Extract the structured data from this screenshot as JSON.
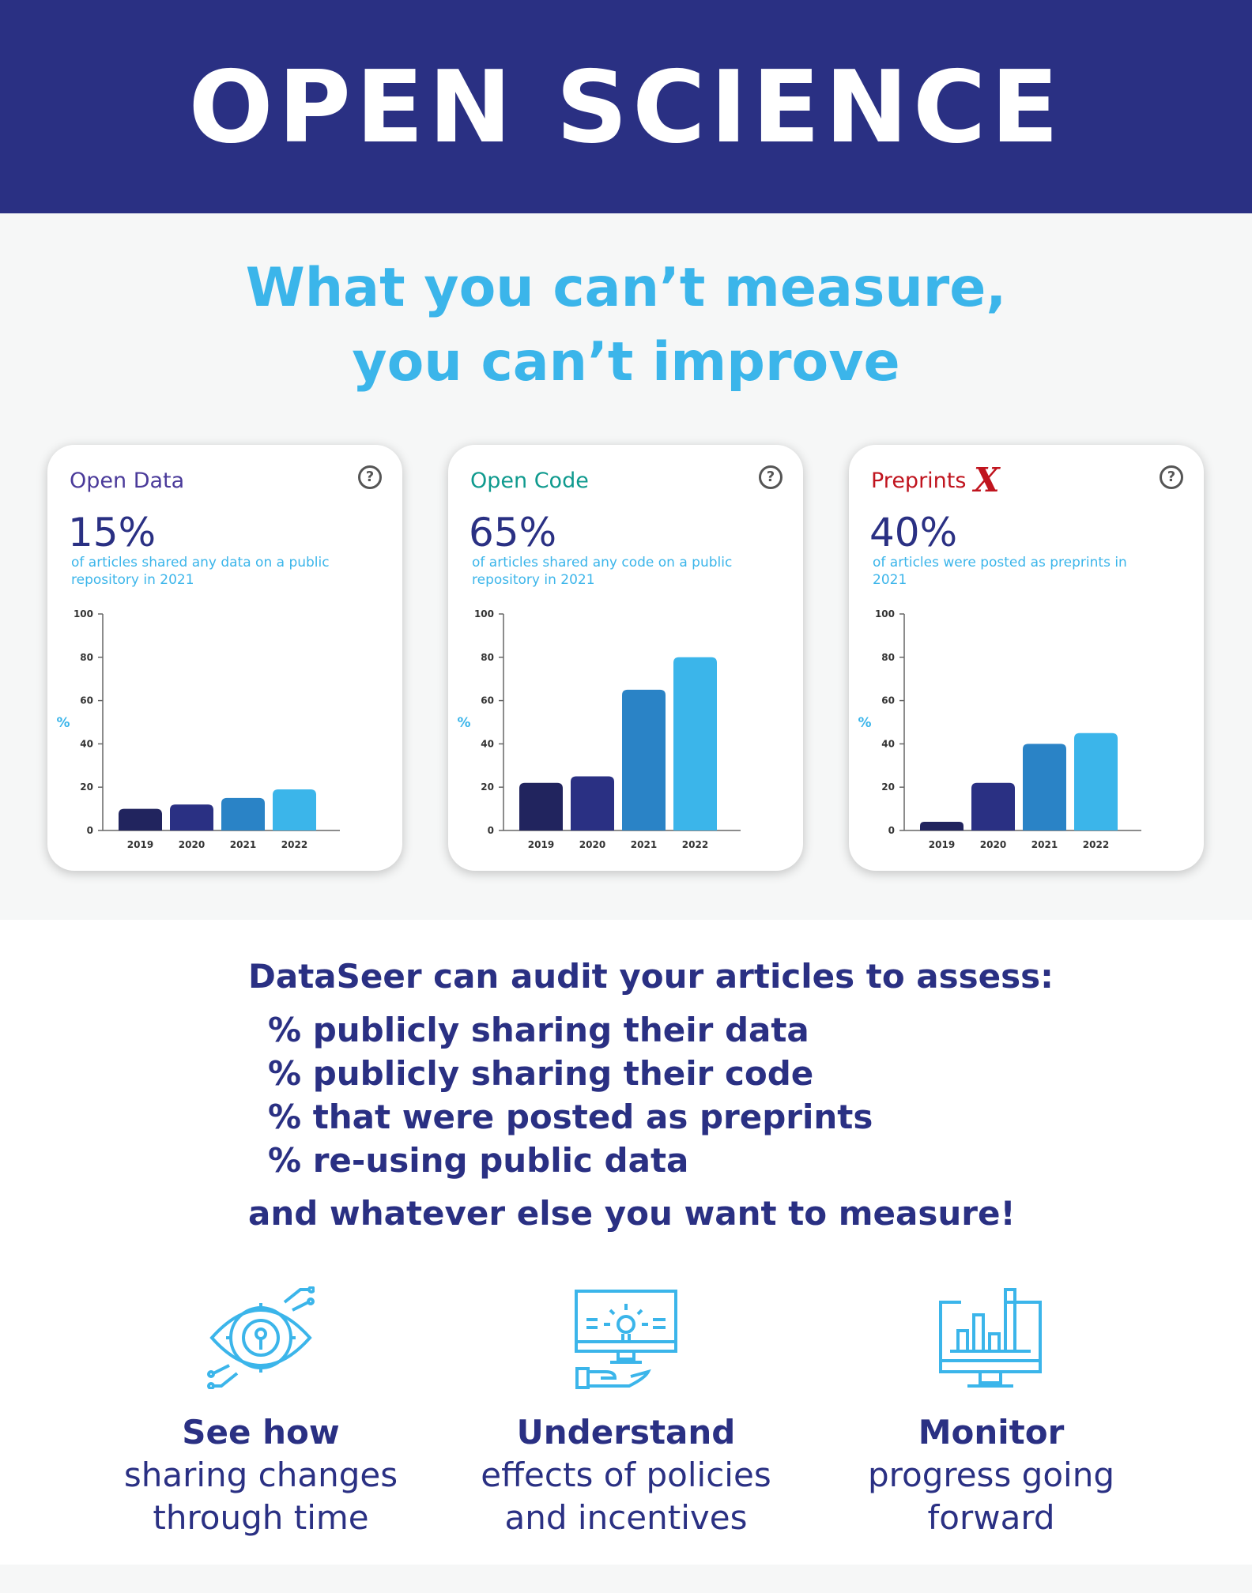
{
  "header": {
    "title": "OPEN SCIENCE"
  },
  "tagline": {
    "line1": "What you can’t measure,",
    "line2": "you can’t improve"
  },
  "colors": {
    "navy": "#2a3083",
    "sky": "#3bb5ea",
    "bar2019": "#21245e",
    "bar2020": "#2a3083",
    "bar2021": "#2a83c6",
    "bar2022": "#3bb5ea",
    "open_data_title": "#4a3a9a",
    "open_code_title": "#0f9a8e",
    "preprints_title": "#c0141e"
  },
  "cards": [
    {
      "title": "Open Data",
      "value": "15%",
      "description": "of articles shared any data on a public repository in 2021",
      "help_icon": "question-circle-icon"
    },
    {
      "title": "Open Code",
      "value": "65%",
      "description": "of articles shared any code on a public repository in 2021",
      "help_icon": "question-circle-icon"
    },
    {
      "title": "Preprints",
      "title_mark": "X",
      "value": "40%",
      "description": "of articles were posted as preprints in 2021",
      "help_icon": "question-circle-icon"
    }
  ],
  "chart_data": [
    {
      "type": "bar",
      "title": "Open Data",
      "ylabel": "%",
      "ylim": [
        0,
        100
      ],
      "yticks": [
        "0",
        "20",
        "40",
        "60",
        "80",
        "100"
      ],
      "categories": [
        "2019",
        "2020",
        "2021",
        "2022"
      ],
      "values": [
        10,
        12,
        15,
        19
      ]
    },
    {
      "type": "bar",
      "title": "Open Code",
      "ylabel": "%",
      "ylim": [
        0,
        100
      ],
      "yticks": [
        "0",
        "20",
        "40",
        "60",
        "80",
        "100"
      ],
      "categories": [
        "2019",
        "2020",
        "2021",
        "2022"
      ],
      "values": [
        22,
        25,
        65,
        80
      ]
    },
    {
      "type": "bar",
      "title": "Preprints",
      "ylabel": "%",
      "ylim": [
        0,
        100
      ],
      "yticks": [
        "0",
        "20",
        "40",
        "60",
        "80",
        "100"
      ],
      "categories": [
        "2019",
        "2020",
        "2021",
        "2022"
      ],
      "values": [
        4,
        22,
        40,
        45
      ]
    }
  ],
  "audit": {
    "heading": "DataSeer can audit your articles to assess:",
    "items": [
      "% publicly sharing their data",
      "% publicly sharing their code",
      "% that were posted as preprints",
      "% re-using public data"
    ],
    "footer": "and whatever else you want to measure!"
  },
  "features": [
    {
      "icon": "eye-gear-icon",
      "bold": "See how",
      "line1": "sharing changes",
      "line2": "through time"
    },
    {
      "icon": "monitor-lightbulb-icon",
      "bold": "Understand",
      "line1": "effects of policies",
      "line2": "and incentives"
    },
    {
      "icon": "monitor-bar-chart-icon",
      "bold": "Monitor",
      "line1": "progress going",
      "line2": "forward"
    }
  ]
}
